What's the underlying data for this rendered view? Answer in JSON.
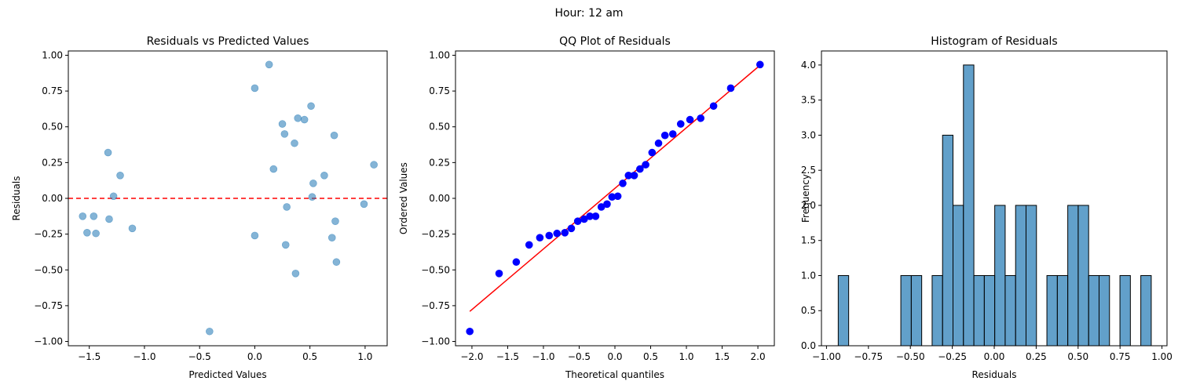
{
  "chart_data": {
    "suptitle": "Hour: 12 am",
    "panels": [
      {
        "type": "scatter",
        "title": "Residuals vs Predicted Values",
        "xlabel": "Predicted Values",
        "ylabel": "Residuals",
        "xlim": [
          -1.69,
          1.2
        ],
        "ylim": [
          -1.03,
          1.03
        ],
        "xticks": [
          -1.5,
          -1.0,
          -0.5,
          0.0,
          0.5,
          1.0
        ],
        "xtick_labels": [
          "−1.5",
          "−1.0",
          "−0.5",
          "0.0",
          "0.5",
          "1.0"
        ],
        "yticks": [
          -1.0,
          -0.75,
          -0.5,
          -0.25,
          0.0,
          0.25,
          0.5,
          0.75,
          1.0
        ],
        "ytick_labels": [
          "−1.00",
          "−0.75",
          "−0.50",
          "−0.25",
          "0.00",
          "0.25",
          "0.50",
          "0.75",
          "1.00"
        ],
        "hline": {
          "y": 0,
          "color": "#ff0000",
          "style": "dashed"
        },
        "color": "#1f77b4",
        "points": [
          [
            -1.56,
            -0.125
          ],
          [
            -1.52,
            -0.24
          ],
          [
            -1.46,
            -0.125
          ],
          [
            -1.44,
            -0.245
          ],
          [
            -1.33,
            0.32
          ],
          [
            -1.32,
            -0.145
          ],
          [
            -1.28,
            0.015
          ],
          [
            -1.22,
            0.16
          ],
          [
            -1.11,
            -0.21
          ],
          [
            -0.41,
            -0.93
          ],
          [
            0.0,
            0.77
          ],
          [
            0.0,
            -0.26
          ],
          [
            0.13,
            0.935
          ],
          [
            0.17,
            0.205
          ],
          [
            0.25,
            0.52
          ],
          [
            0.27,
            0.45
          ],
          [
            0.28,
            -0.325
          ],
          [
            0.29,
            -0.06
          ],
          [
            0.36,
            0.385
          ],
          [
            0.37,
            -0.525
          ],
          [
            0.39,
            0.56
          ],
          [
            0.45,
            0.55
          ],
          [
            0.51,
            0.645
          ],
          [
            0.52,
            0.01
          ],
          [
            0.53,
            0.105
          ],
          [
            0.63,
            0.16
          ],
          [
            0.7,
            -0.275
          ],
          [
            0.72,
            0.44
          ],
          [
            0.73,
            -0.16
          ],
          [
            0.74,
            -0.445
          ],
          [
            0.99,
            -0.04
          ],
          [
            1.08,
            0.235
          ]
        ]
      },
      {
        "type": "scatter",
        "title": "QQ Plot of Residuals",
        "xlabel": "Theoretical quantiles",
        "ylabel": "Ordered Values",
        "xlim": [
          -2.23,
          2.23
        ],
        "ylim": [
          -1.03,
          1.03
        ],
        "xticks": [
          -2,
          -1.5,
          -1,
          -0.5,
          0,
          0.5,
          1,
          1.5,
          2
        ],
        "xtick_labels": [
          "−2.0",
          "−1.5",
          "−1.0",
          "−0.5",
          "0.0",
          "0.5",
          "1.0",
          "1.5",
          "2.0"
        ],
        "yticks": [
          -1.0,
          -0.75,
          -0.5,
          -0.25,
          0.0,
          0.25,
          0.5,
          0.75,
          1.0
        ],
        "ytick_labels": [
          "−1.00",
          "−0.75",
          "−0.50",
          "−0.25",
          "0.00",
          "0.25",
          "0.50",
          "0.75",
          "1.00"
        ],
        "line": {
          "from": [
            -2.03,
            -0.79
          ],
          "to": [
            2.03,
            0.93
          ],
          "color": "#ff0000"
        },
        "color": "#0000ff",
        "points": [
          [
            -2.03,
            -0.93
          ],
          [
            -1.62,
            -0.525
          ],
          [
            -1.38,
            -0.445
          ],
          [
            -1.2,
            -0.325
          ],
          [
            -1.05,
            -0.275
          ],
          [
            -0.92,
            -0.26
          ],
          [
            -0.81,
            -0.245
          ],
          [
            -0.7,
            -0.24
          ],
          [
            -0.61,
            -0.21
          ],
          [
            -0.52,
            -0.16
          ],
          [
            -0.43,
            -0.145
          ],
          [
            -0.35,
            -0.125
          ],
          [
            -0.27,
            -0.125
          ],
          [
            -0.19,
            -0.06
          ],
          [
            -0.11,
            -0.04
          ],
          [
            -0.04,
            0.01
          ],
          [
            0.04,
            0.015
          ],
          [
            0.11,
            0.105
          ],
          [
            0.19,
            0.16
          ],
          [
            0.27,
            0.16
          ],
          [
            0.35,
            0.205
          ],
          [
            0.43,
            0.235
          ],
          [
            0.52,
            0.32
          ],
          [
            0.61,
            0.385
          ],
          [
            0.7,
            0.44
          ],
          [
            0.81,
            0.45
          ],
          [
            0.92,
            0.52
          ],
          [
            1.05,
            0.55
          ],
          [
            1.2,
            0.56
          ],
          [
            1.38,
            0.645
          ],
          [
            1.62,
            0.77
          ],
          [
            2.03,
            0.935
          ]
        ]
      },
      {
        "type": "bar",
        "subtype": "histogram",
        "title": "Histogram of Residuals",
        "xlabel": "Residuals",
        "ylabel": "Frequency",
        "xlim": [
          -1.03,
          1.03
        ],
        "ylim": [
          0,
          4.2
        ],
        "xticks": [
          -1.0,
          -0.75,
          -0.5,
          -0.25,
          0.0,
          0.25,
          0.5,
          0.75,
          1.0
        ],
        "xtick_labels": [
          "−1.00",
          "−0.75",
          "−0.50",
          "−0.25",
          "0.00",
          "0.25",
          "0.50",
          "0.75",
          "1.00"
        ],
        "yticks": [
          0,
          0.5,
          1.0,
          1.5,
          2.0,
          2.5,
          3.0,
          3.5,
          4.0
        ],
        "ytick_labels": [
          "0.0",
          "0.5",
          "1.0",
          "1.5",
          "2.0",
          "2.5",
          "3.0",
          "3.5",
          "4.0"
        ],
        "color": "#1f77b4",
        "bin_start": -0.93,
        "bin_width": 0.0622,
        "counts": [
          1,
          0,
          0,
          0,
          0,
          0,
          1,
          1,
          0,
          1,
          3,
          2,
          4,
          1,
          1,
          2,
          1,
          2,
          2,
          0,
          1,
          1,
          2,
          2,
          1,
          1,
          0,
          1,
          0,
          1
        ]
      }
    ]
  }
}
